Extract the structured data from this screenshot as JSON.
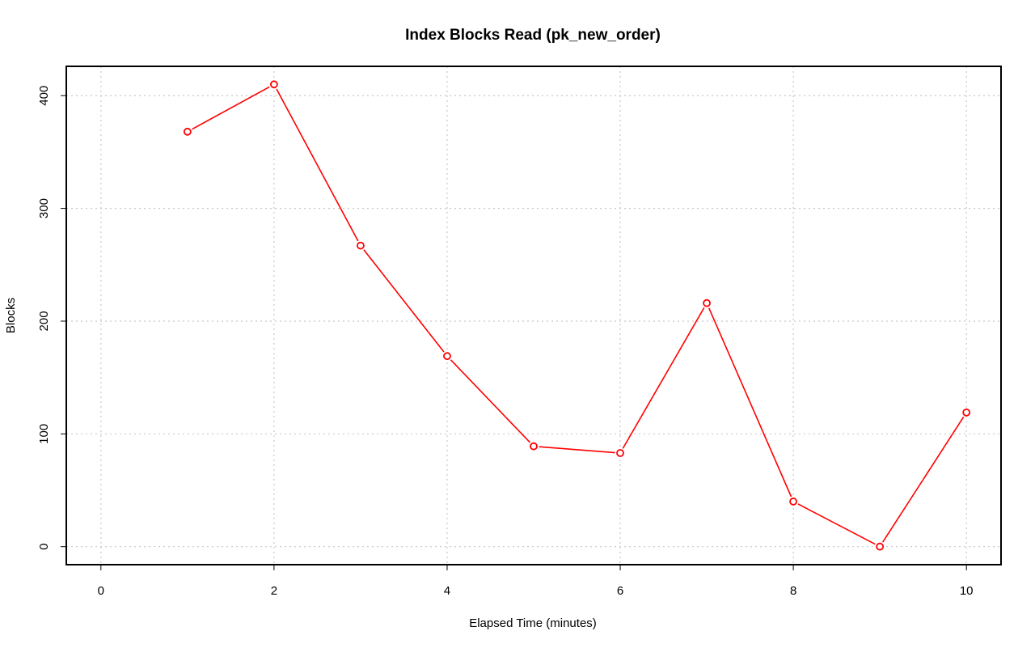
{
  "chart_data": {
    "type": "line",
    "title": "Index Blocks Read (pk_new_order)",
    "xlabel": "Elapsed Time (minutes)",
    "ylabel": "Blocks",
    "xlim": [
      -0.4,
      10.4
    ],
    "ylim": [
      -16,
      426
    ],
    "x_ticks": [
      0,
      2,
      4,
      6,
      8,
      10
    ],
    "y_ticks": [
      0,
      100,
      200,
      300,
      400
    ],
    "x_tick_labels": [
      "0",
      "2",
      "4",
      "6",
      "8",
      "10"
    ],
    "y_tick_labels": [
      "0",
      "100",
      "200",
      "300",
      "400"
    ],
    "grid": true,
    "series": [
      {
        "color": "#ff0000",
        "x": [
          1,
          2,
          3,
          4,
          5,
          6,
          7,
          8,
          9,
          10
        ],
        "values": [
          368,
          410,
          267,
          169,
          89,
          83,
          216,
          40,
          0,
          119
        ]
      }
    ]
  }
}
